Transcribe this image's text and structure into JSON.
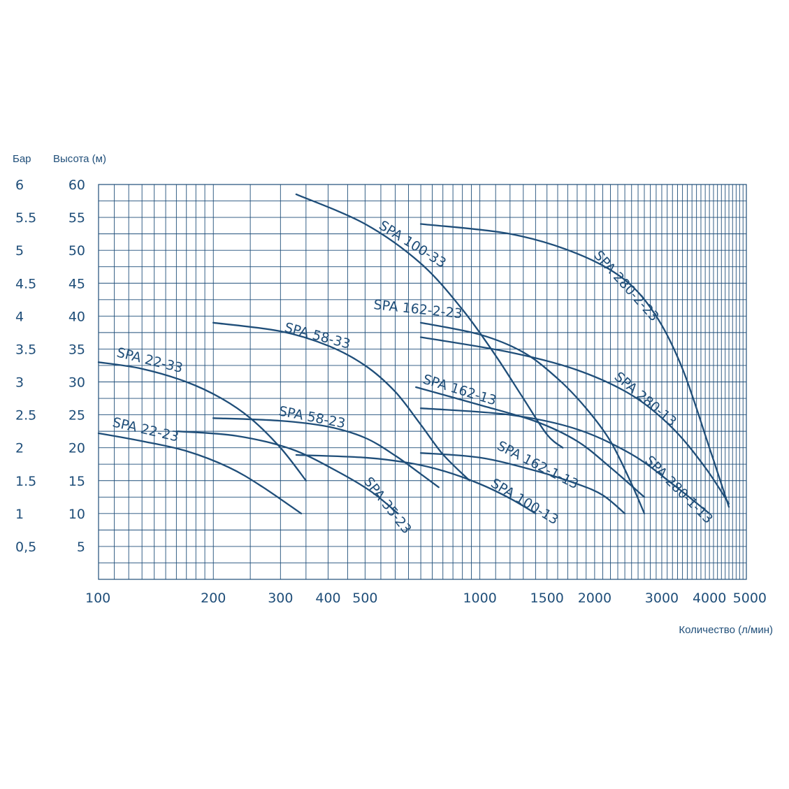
{
  "chart_data": {
    "type": "line",
    "x_scale": "log",
    "xlim": [
      100,
      5000
    ],
    "ylim": [
      0,
      60
    ],
    "ylim_bar": [
      0,
      6
    ],
    "xlabel": "Количество (л/мин)",
    "ylabel": "Высота (м)",
    "ylabel_secondary": "Бар",
    "grid": true,
    "x_ticks": [
      {
        "value": 100,
        "label": "100"
      },
      {
        "value": 200,
        "label": "200"
      },
      {
        "value": 300,
        "label": "300"
      },
      {
        "value": 400,
        "label": "400"
      },
      {
        "value": 500,
        "label": "500"
      },
      {
        "value": 1000,
        "label": "1000"
      },
      {
        "value": 1500,
        "label": "1500"
      },
      {
        "value": 2000,
        "label": "2000"
      },
      {
        "value": 3000,
        "label": "3000"
      },
      {
        "value": 4000,
        "label": "4000"
      },
      {
        "value": 5000,
        "label": "5000"
      }
    ],
    "y_ticks": [
      {
        "value": 60,
        "label": "60"
      },
      {
        "value": 55,
        "label": "55"
      },
      {
        "value": 50,
        "label": "50"
      },
      {
        "value": 45,
        "label": "45"
      },
      {
        "value": 40,
        "label": "40"
      },
      {
        "value": 35,
        "label": "35"
      },
      {
        "value": 30,
        "label": "30"
      },
      {
        "value": 25,
        "label": "25"
      },
      {
        "value": 20,
        "label": "20"
      },
      {
        "value": 15,
        "label": "15"
      },
      {
        "value": 10,
        "label": "10"
      },
      {
        "value": 5,
        "label": "5"
      }
    ],
    "bar_ticks": [
      {
        "value": 6,
        "label": "6"
      },
      {
        "value": 5.5,
        "label": "5.5"
      },
      {
        "value": 5,
        "label": "5"
      },
      {
        "value": 4.5,
        "label": "4.5"
      },
      {
        "value": 4,
        "label": "4"
      },
      {
        "value": 3.5,
        "label": "3.5"
      },
      {
        "value": 3,
        "label": "3"
      },
      {
        "value": 2.5,
        "label": "2.5"
      },
      {
        "value": 2,
        "label": "2"
      },
      {
        "value": 1.5,
        "label": "1.5"
      },
      {
        "value": 1,
        "label": "1"
      },
      {
        "value": 0.5,
        "label": "0,5"
      }
    ],
    "series": [
      {
        "name": "SPA 22-23",
        "x": [
          100,
          130,
          170,
          220,
          270,
          340
        ],
        "y": [
          22.2,
          21.0,
          19.5,
          17.0,
          14.0,
          10.0
        ]
      },
      {
        "name": "SPA 22-33",
        "x": [
          100,
          130,
          170,
          210,
          250,
          300,
          350
        ],
        "y": [
          33.0,
          32.0,
          30.0,
          27.5,
          24.5,
          20.0,
          15.0
        ]
      },
      {
        "name": "SPA 35-23",
        "x": [
          160,
          230,
          320,
          420,
          520,
          610
        ],
        "y": [
          22.5,
          21.8,
          19.8,
          16.5,
          13.3,
          10.0
        ]
      },
      {
        "name": "SPA 58-23",
        "x": [
          200,
          300,
          400,
          500,
          600,
          700,
          780
        ],
        "y": [
          24.5,
          24.1,
          23.2,
          21.5,
          18.8,
          16.0,
          14.0
        ]
      },
      {
        "name": "SPA 58-33",
        "x": [
          200,
          300,
          400,
          500,
          600,
          700,
          800,
          940
        ],
        "y": [
          39.0,
          37.7,
          35.5,
          32.5,
          28.5,
          23.5,
          19.0,
          15.0
        ]
      },
      {
        "name": "SPA 100-13",
        "x": [
          330,
          500,
          650,
          800,
          1000,
          1200,
          1400
        ],
        "y": [
          18.9,
          18.5,
          17.7,
          16.5,
          14.5,
          12.3,
          10.0
        ]
      },
      {
        "name": "SPA 100-33",
        "x": [
          330,
          500,
          700,
          900,
          1100,
          1300,
          1500,
          1650
        ],
        "y": [
          58.5,
          54.0,
          48.0,
          41.0,
          34.0,
          27.5,
          22.0,
          20.0
        ]
      },
      {
        "name": "SPA 162-1-13",
        "x": [
          700,
          1000,
          1400,
          1800,
          2100,
          2400
        ],
        "y": [
          19.2,
          18.5,
          16.5,
          14.5,
          12.8,
          10.0
        ]
      },
      {
        "name": "SPA 162-13",
        "x": [
          680,
          1000,
          1400,
          1800,
          2200,
          2700
        ],
        "y": [
          29.2,
          26.5,
          24.0,
          21.0,
          17.0,
          12.5
        ]
      },
      {
        "name": "SPA 162-2-23",
        "x": [
          700,
          1000,
          1300,
          1600,
          1900,
          2200,
          2500,
          2700
        ],
        "y": [
          39.0,
          37.2,
          34.5,
          30.5,
          26.0,
          21.0,
          14.5,
          10.0
        ]
      },
      {
        "name": "SPA 280-13",
        "x": [
          700,
          1200,
          1800,
          2500,
          3200,
          3900,
          4500
        ],
        "y": [
          36.8,
          34.5,
          31.8,
          28.0,
          23.0,
          17.0,
          11.5
        ]
      },
      {
        "name": "SPA 280-1-13",
        "x": [
          700,
          1200,
          1800,
          2500,
          3200,
          4000
        ],
        "y": [
          26.0,
          25.0,
          22.8,
          19.0,
          14.5,
          10.0
        ]
      },
      {
        "name": "SPA 280-2-23",
        "x": [
          700,
          1200,
          1800,
          2400,
          2900,
          3400,
          4000,
          4500
        ],
        "y": [
          54.0,
          52.5,
          49.5,
          45.5,
          40.0,
          32.0,
          20.0,
          11.0
        ]
      }
    ]
  }
}
